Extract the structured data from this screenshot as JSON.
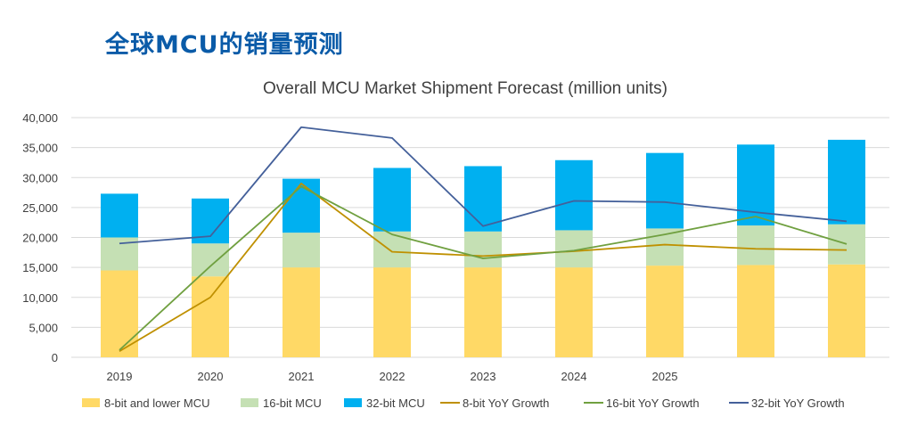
{
  "page": {
    "title": "全球MCU的销量预测"
  },
  "colors": {
    "title": "#0a5ba8",
    "bar_8bit": "#ffd966",
    "bar_16bit": "#c5e0b4",
    "bar_32bit": "#00b0f0",
    "line_8bit": "#bf9000",
    "line_16bit": "#70a040",
    "line_32bit": "#44609a",
    "grid": "#d9d9d9",
    "text": "#404040"
  },
  "chart_data": {
    "type": "bar",
    "title": "Overall MCU Market Shipment Forecast (million units)",
    "categories": [
      "2019",
      "2020",
      "2021",
      "2022",
      "2023",
      "2024",
      "2025",
      "",
      ""
    ],
    "y_ticks": [
      "0",
      "5,000",
      "10,000",
      "15,000",
      "20,000",
      "25,000",
      "30,000",
      "35,000",
      "40,000"
    ],
    "ylim": [
      0,
      40000
    ],
    "grid": true,
    "legend_position": "bottom",
    "series": [
      {
        "name": "8-bit and lower MCU",
        "kind": "bar",
        "stack": true,
        "values": [
          14500,
          13500,
          15000,
          15000,
          15000,
          15000,
          15300,
          15400,
          15500
        ]
      },
      {
        "name": "16-bit MCU",
        "kind": "bar",
        "stack": true,
        "values": [
          5500,
          5500,
          5800,
          6000,
          6000,
          6200,
          6200,
          6600,
          6700
        ]
      },
      {
        "name": "32-bit MCU",
        "kind": "bar",
        "stack": true,
        "values": [
          7300,
          7500,
          9000,
          10600,
          10900,
          11700,
          12600,
          13500,
          14100
        ]
      },
      {
        "name": "8-bit YoY Growth",
        "kind": "line",
        "values": [
          1000,
          10000,
          29000,
          17600,
          16900,
          17700,
          18800,
          18100,
          17900
        ]
      },
      {
        "name": "16-bit YoY Growth",
        "kind": "line",
        "values": [
          1200,
          15200,
          28500,
          20500,
          16500,
          17800,
          20500,
          23500,
          18900
        ]
      },
      {
        "name": "32-bit YoY Growth",
        "kind": "line",
        "values": [
          19000,
          20200,
          38400,
          36600,
          21900,
          26100,
          25900,
          24200,
          22700
        ]
      }
    ]
  }
}
